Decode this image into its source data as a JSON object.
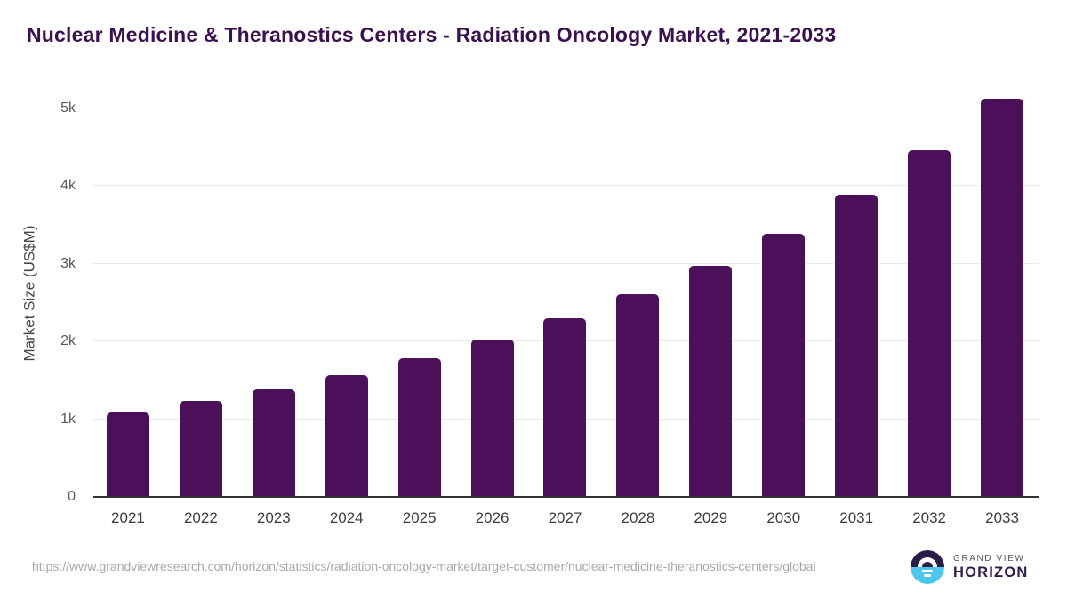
{
  "title": "Nuclear Medicine & Theranostics Centers - Radiation Oncology Market, 2021-2033",
  "chart_data": {
    "type": "bar",
    "title": "Nuclear Medicine & Theranostics Centers - Radiation Oncology Market, 2021-2033",
    "categories": [
      "2021",
      "2022",
      "2023",
      "2024",
      "2025",
      "2026",
      "2027",
      "2028",
      "2029",
      "2030",
      "2031",
      "2032",
      "2033"
    ],
    "values": [
      1085,
      1230,
      1385,
      1570,
      1780,
      2020,
      2295,
      2610,
      2970,
      3390,
      3890,
      4460,
      5120
    ],
    "series_name": "Market Size",
    "xlabel": "",
    "ylabel": "Market Size (US$M)",
    "ylim": [
      0,
      5250
    ],
    "yticks": {
      "labels": [
        "0",
        "1k",
        "2k",
        "3k",
        "4k",
        "5k"
      ],
      "values": [
        0,
        1000,
        2000,
        3000,
        4000,
        5000
      ]
    },
    "grid": "horizontal",
    "legend": "none",
    "bar_color": "#4b1059"
  },
  "footer": {
    "source_url": "https://www.grandviewresearch.com/horizon/statistics/radiation-oncology-market/target-customer/nuclear-medicine-theranostics-centers/global",
    "logo": {
      "top_text": "GRAND VIEW",
      "bottom_text": "HORIZON"
    }
  },
  "colors": {
    "title": "#3a1051",
    "bar": "#4b1059",
    "axis_line": "#323232",
    "gridline": "#ebebeb",
    "tick_label": "#585858",
    "source_url": "#a9a9a9",
    "logo_dark": "#2a1c46",
    "logo_blue": "#4ec7ef"
  }
}
